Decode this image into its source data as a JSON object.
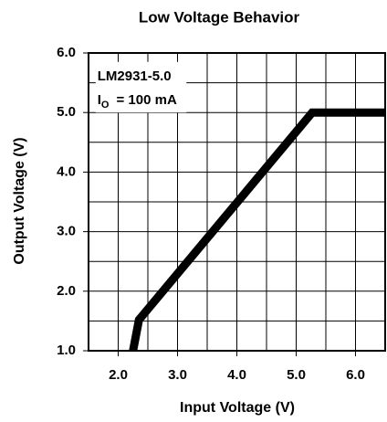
{
  "chart_data": {
    "type": "line",
    "title": "Low Voltage Behavior",
    "xlabel": "Input Voltage (V)",
    "ylabel": "Output Voltage (V)",
    "annotation": {
      "line1": "LM2931-5.0",
      "symbol": "I",
      "subscript": "O",
      "rest": "= 100 mA"
    },
    "x": [
      2.25,
      2.35,
      5.27,
      6.5
    ],
    "series": [
      {
        "color": "#000000",
        "values": [
          1.0,
          1.52,
          5.0,
          5.0
        ]
      }
    ],
    "xlim": [
      1.5,
      6.5
    ],
    "ylim": [
      1.0,
      6.0
    ],
    "xticks": [
      {
        "value": 2,
        "label": "2.0"
      },
      {
        "value": 3,
        "label": "3.0"
      },
      {
        "value": 4,
        "label": "4.0"
      },
      {
        "value": 5,
        "label": "5.0"
      },
      {
        "value": 6,
        "label": "6.0"
      }
    ],
    "yticks": [
      {
        "value": 1,
        "label": "1.0"
      },
      {
        "value": 2,
        "label": "2.0"
      },
      {
        "value": 3,
        "label": "3.0"
      },
      {
        "value": 4,
        "label": "4.0"
      },
      {
        "value": 5,
        "label": "5.0"
      },
      {
        "value": 6,
        "label": "6.0"
      }
    ],
    "xgrid": [
      2,
      2.5,
      3,
      3.5,
      4,
      4.5,
      5,
      5.5,
      6
    ],
    "ygrid": [
      1.5,
      2,
      2.5,
      3,
      3.5,
      4,
      4.5,
      5,
      5.5
    ],
    "grid": true
  }
}
